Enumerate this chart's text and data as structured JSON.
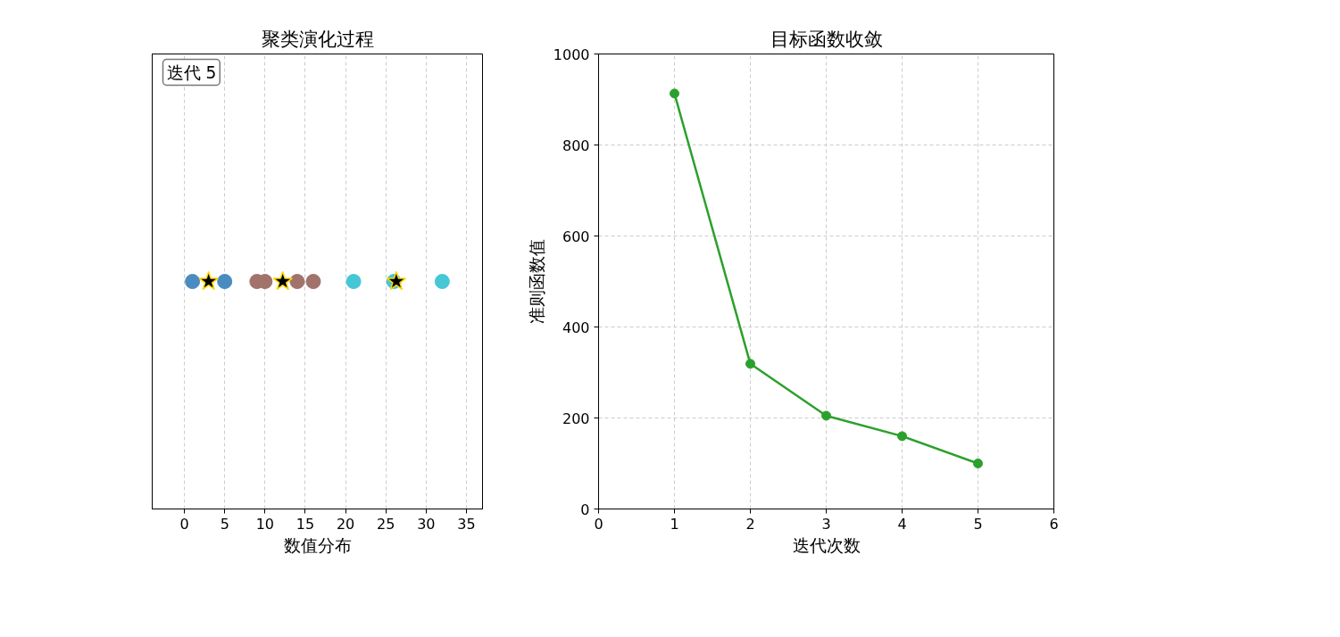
{
  "chart_data": [
    {
      "type": "scatter",
      "orientation": "horizontal",
      "title": "聚类演化过程",
      "xlabel": "数值分布",
      "categories": [
        null
      ],
      "xlim": [
        -4,
        37
      ],
      "xticks": [
        0,
        5,
        10,
        15,
        20,
        25,
        30,
        35
      ],
      "grid": "x",
      "marker": "circle",
      "annotations": [
        "迭代 5"
      ],
      "series": [
        {
          "color": "#4a8cc0",
          "values": [
            1
          ]
        },
        {
          "color": "#4a8cc0",
          "values": [
            5
          ]
        },
        {
          "color": "#a1736a",
          "values": [
            9
          ]
        },
        {
          "color": "#a1736a",
          "values": [
            10
          ]
        },
        {
          "color": "#a1736a",
          "values": [
            14
          ]
        },
        {
          "color": "#a1736a",
          "values": [
            16
          ]
        },
        {
          "color": "#45c7d6",
          "values": [
            21
          ]
        },
        {
          "color": "#45c7d6",
          "values": [
            26
          ]
        },
        {
          "color": "#45c7d6",
          "values": [
            32
          ]
        },
        {
          "color": "#000000",
          "marker": "star",
          "values": [
            3
          ]
        },
        {
          "color": "#000000",
          "marker": "star",
          "values": [
            12.2
          ]
        },
        {
          "color": "#000000",
          "marker": "star",
          "values": [
            26.3
          ]
        }
      ]
    },
    {
      "type": "line",
      "title": "目标函数收敛",
      "xlabel": "迭代次数",
      "ylabel": "准则函数值",
      "xlim": [
        0,
        6
      ],
      "xticks": [
        0,
        1,
        2,
        3,
        4,
        5,
        6
      ],
      "ylim": [
        0,
        1000
      ],
      "yticks": [
        0,
        200,
        400,
        600,
        800,
        1000
      ],
      "grid": true,
      "marker": "circle",
      "line_style": "solid",
      "series": [
        {
          "color": "#2ca02c",
          "x": [
            1,
            2,
            3,
            4,
            5
          ],
          "values": [
            913,
            319,
            205,
            160,
            100
          ]
        }
      ]
    }
  ]
}
